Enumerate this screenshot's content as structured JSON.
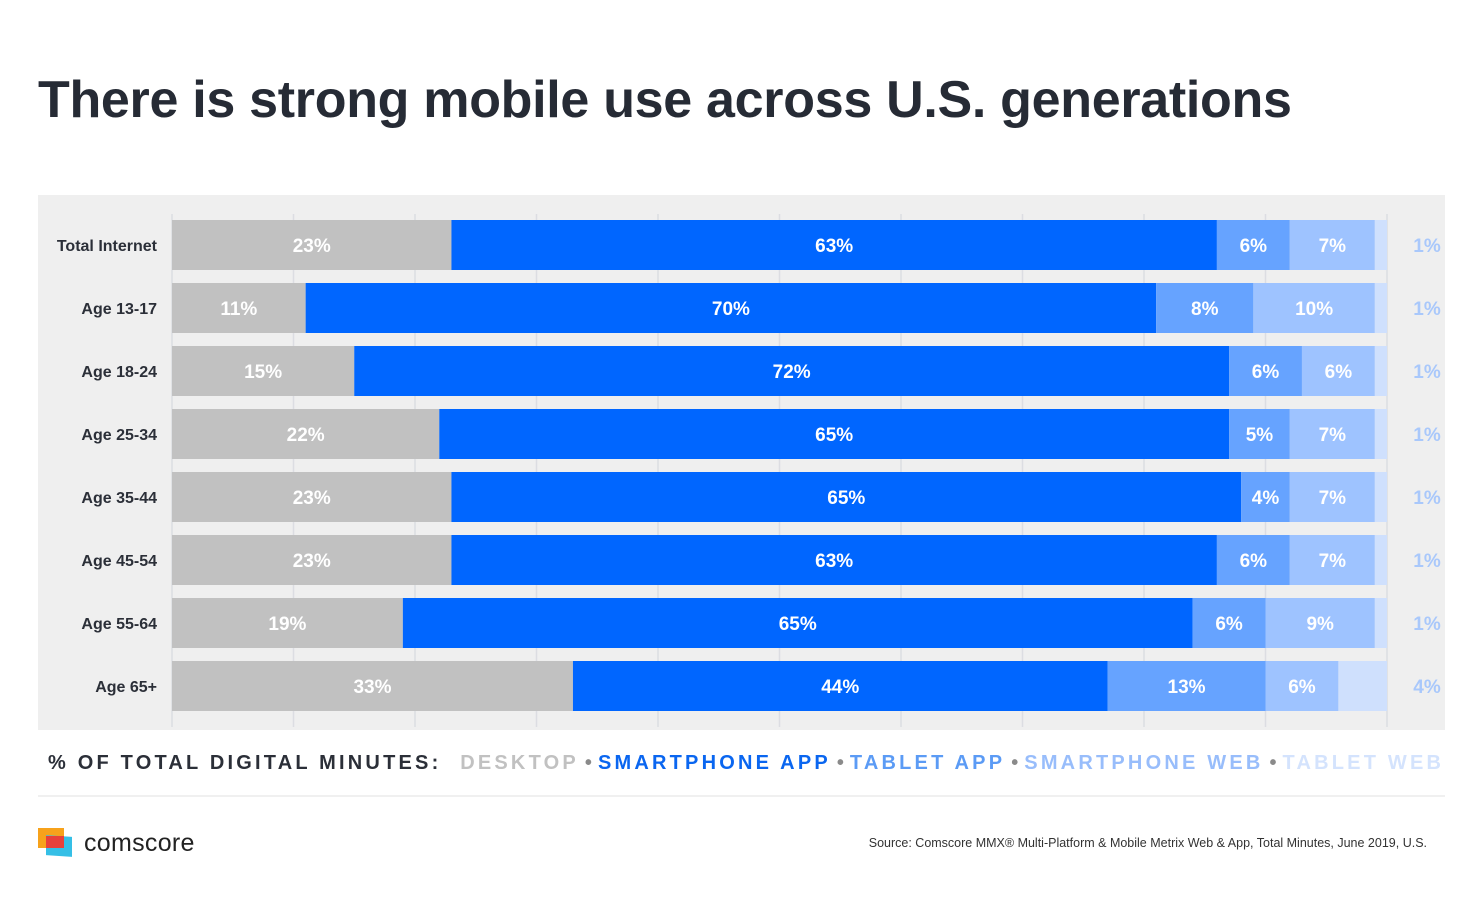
{
  "title": "There is strong mobile use across U.S. generations",
  "chart_data": {
    "type": "bar",
    "orientation": "horizontal",
    "stacked": true,
    "title": "There is strong mobile use across U.S. generations",
    "xlabel": "% OF TOTAL DIGITAL MINUTES",
    "ylabel": "",
    "xlim": [
      0,
      100
    ],
    "grid": true,
    "legend_position": "bottom",
    "categories": [
      "Total Internet",
      "Age 13-17",
      "Age 18-24",
      "Age 25-34",
      "Age 35-44",
      "Age 45-54",
      "Age 55-64",
      "Age 65+"
    ],
    "series": [
      {
        "name": "DESKTOP",
        "color": "#c1c1c1",
        "values": [
          23,
          11,
          15,
          22,
          23,
          23,
          19,
          33
        ],
        "labels": [
          "23%",
          "11%",
          "15%",
          "22%",
          "23%",
          "23%",
          "19%",
          "33%"
        ]
      },
      {
        "name": "SMARTPHONE APP",
        "color": "#0066ff",
        "values": [
          63,
          70,
          72,
          65,
          65,
          63,
          65,
          44
        ],
        "labels": [
          "63%",
          "70%",
          "72%",
          "65%",
          "65%",
          "63%",
          "65%",
          "44%"
        ]
      },
      {
        "name": "TABLET APP",
        "color": "#66a3ff",
        "values": [
          6,
          8,
          6,
          5,
          4,
          6,
          6,
          13
        ],
        "labels": [
          "6%",
          "8%",
          "6%",
          "5%",
          "4%",
          "6%",
          "6%",
          "13%"
        ]
      },
      {
        "name": "SMARTPHONE WEB",
        "color": "#9ec3ff",
        "values": [
          7,
          10,
          6,
          7,
          7,
          7,
          9,
          6
        ],
        "labels": [
          "7%",
          "10%",
          "6%",
          "7%",
          "7%",
          "7%",
          "9%",
          "6%"
        ]
      },
      {
        "name": "TABLET WEB",
        "color": "#cfe0fd",
        "values": [
          1,
          1,
          1,
          1,
          1,
          1,
          1,
          4
        ],
        "labels": [
          "1%",
          "1%",
          "1%",
          "1%",
          "1%",
          "1%",
          "1%",
          "4%"
        ]
      }
    ]
  },
  "legend": {
    "prefix": "% OF TOTAL DIGITAL MINUTES:",
    "separator": "•",
    "items": [
      {
        "label": "DESKTOP",
        "color": "#c1c1c1"
      },
      {
        "label": "SMARTPHONE APP",
        "color": "#0a66f0"
      },
      {
        "label": "TABLET APP",
        "color": "#5b9bf5"
      },
      {
        "label": "SMARTPHONE WEB",
        "color": "#98bdfb"
      },
      {
        "label": "TABLET WEB",
        "color": "#d4e3fd"
      }
    ]
  },
  "footer": {
    "logo_text": "comscore",
    "source": "Source: Comscore MMX® Multi-Platform & Mobile Metrix Web & App, Total Minutes, June 2019, U.S."
  }
}
